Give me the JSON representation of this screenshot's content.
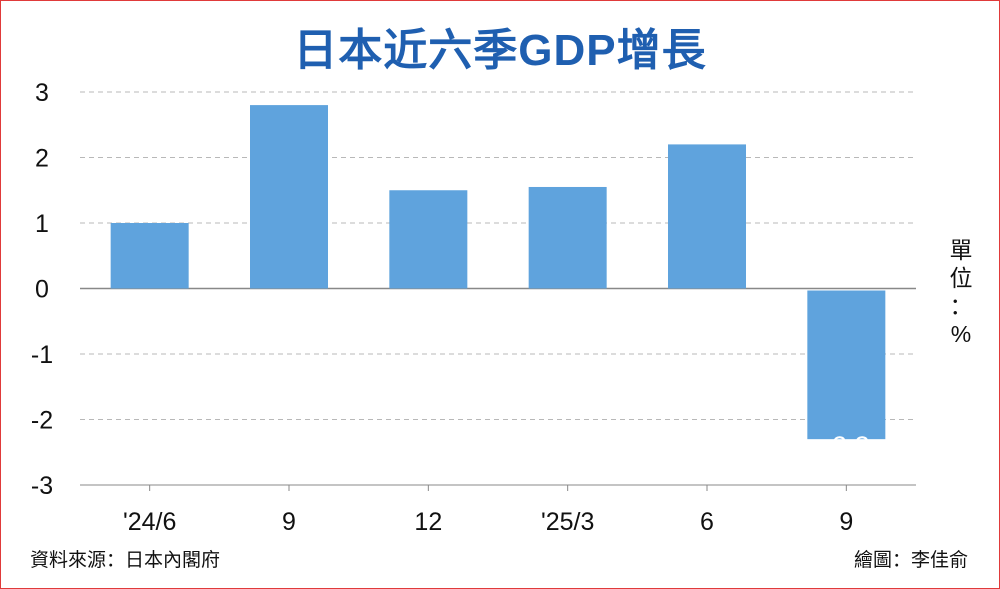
{
  "title": "日本近六季GDP增長",
  "unit_label": "單位：%",
  "source": "資料來源：日本內閣府",
  "credit": "繪圖：李佳俞",
  "colors": {
    "bar": "#5fa3dd",
    "title": "#1f5fb0",
    "frame": "#e03a3a",
    "grid": "#b8b8b8"
  },
  "chart_data": {
    "type": "bar",
    "categories": [
      "'24/6",
      "9",
      "12",
      "'25/3",
      "6",
      "9"
    ],
    "values": [
      1.0,
      2.8,
      1.5,
      1.55,
      2.2,
      -2.3
    ],
    "data_labels": [
      null,
      null,
      null,
      null,
      null,
      "-2.3"
    ],
    "yticks": [
      "3",
      "2",
      "1",
      "0",
      "-1",
      "-2",
      "-3"
    ],
    "ylim": [
      -3,
      3
    ],
    "grid": true
  }
}
